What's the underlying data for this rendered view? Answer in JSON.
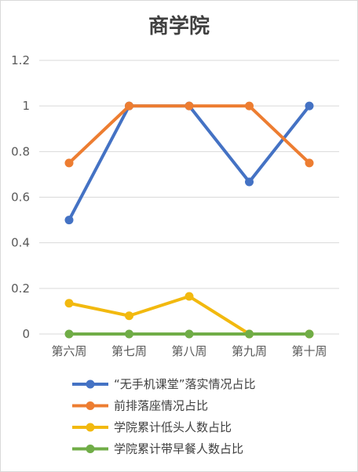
{
  "chart_data": {
    "type": "line",
    "title": "商学院",
    "categories": [
      "第六周",
      "第七周",
      "第八周",
      "第九周",
      "第十周"
    ],
    "ylim": [
      0,
      1.2
    ],
    "yticks": [
      "0",
      "0.2",
      "0.4",
      "0.6",
      "0.8",
      "1",
      "1.2"
    ],
    "grid": true,
    "legend_position": "bottom",
    "series": [
      {
        "name": "“无手机课堂”落实情况占比",
        "color": "#4472C4",
        "values": [
          0.5,
          1,
          1,
          0.667,
          1
        ]
      },
      {
        "name": "前排落座情况占比",
        "color": "#ED7D31",
        "values": [
          0.75,
          1,
          1,
          1,
          0.75
        ]
      },
      {
        "name": "学院累计低头人数占比",
        "color": "#F2B90F",
        "values": [
          0.135,
          0.08,
          0.165,
          0,
          0
        ]
      },
      {
        "name": "学院累计带早餐人数占比",
        "color": "#70AD47",
        "values": [
          0,
          0,
          0,
          0,
          0
        ]
      }
    ]
  }
}
